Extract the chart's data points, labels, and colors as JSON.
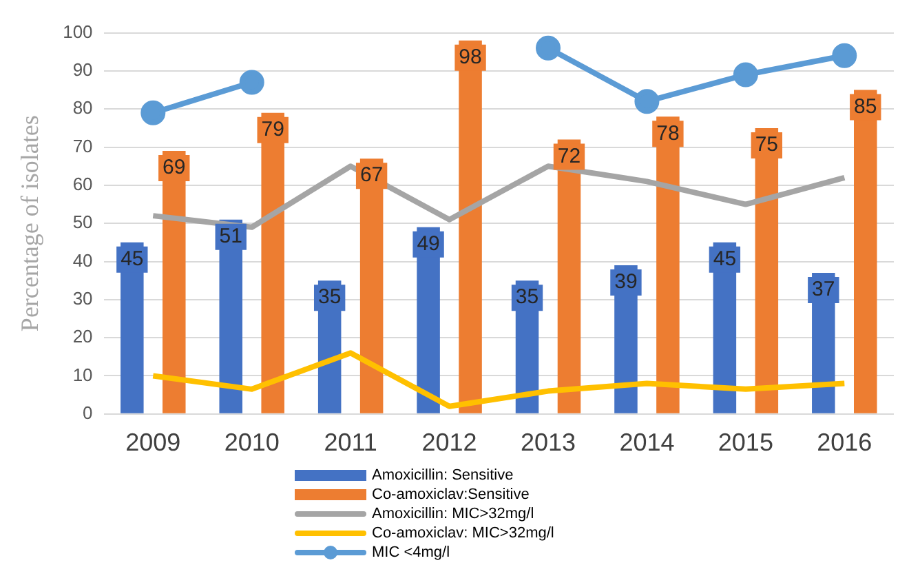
{
  "chart_data": {
    "type": "bar",
    "ylabel": "Percentage of isolates",
    "categories": [
      "2009",
      "2010",
      "2011",
      "2012",
      "2013",
      "2014",
      "2015",
      "2016"
    ],
    "series": [
      {
        "name": "Amoxicillin: Sensitive",
        "color": "#4472c4",
        "values": [
          45,
          51,
          35,
          49,
          35,
          39,
          45,
          37
        ],
        "value_labels": [
          "45",
          "51",
          "35",
          "49",
          "35",
          "39",
          "45",
          "37"
        ]
      },
      {
        "name": "Co-amoxiclav:Sensitive",
        "color": "#ed7d31",
        "values": [
          69,
          79,
          67,
          98,
          72,
          78,
          75,
          85
        ],
        "value_labels": [
          "69",
          "79",
          "67",
          "98",
          "72",
          "78",
          "75",
          "85"
        ]
      },
      {
        "name": "Amoxicillin: MIC>32mg/l",
        "type": "line",
        "color": "#a5a5a5",
        "marker": "none",
        "values": [
          52,
          49,
          65,
          51,
          65,
          61,
          55,
          62
        ]
      },
      {
        "name": "Co-amoxiclav: MIC>32mg/l",
        "type": "line",
        "color": "#ffc000",
        "marker": "none",
        "values": [
          10,
          6.5,
          16,
          2,
          6,
          8,
          6.5,
          8
        ]
      },
      {
        "name": "MIC <4mg/l",
        "type": "line",
        "color": "#5b9bd5",
        "marker": "circle",
        "values": [
          79,
          87,
          null,
          null,
          96,
          82,
          89,
          94
        ]
      }
    ],
    "ylim": [
      0,
      100
    ],
    "yticks": [
      0,
      10,
      20,
      30,
      40,
      50,
      60,
      70,
      80,
      90,
      100
    ],
    "grid": "y",
    "legend": "bottom"
  }
}
